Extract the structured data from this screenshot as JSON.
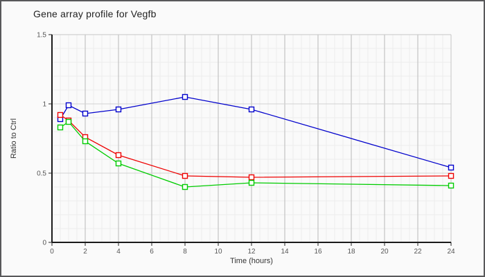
{
  "chart_data": {
    "type": "line",
    "title": "Gene array profile for Vegfb",
    "xlabel": "Time (hours)",
    "ylabel": "Ratio to Ctrl",
    "x": [
      0.5,
      1,
      2,
      4,
      8,
      12,
      24
    ],
    "series": [
      {
        "name": "blue",
        "color": "#0000cc",
        "values": [
          0.89,
          0.99,
          0.93,
          0.96,
          1.05,
          0.96,
          0.54
        ]
      },
      {
        "name": "red",
        "color": "#ee0000",
        "values": [
          0.92,
          0.88,
          0.76,
          0.63,
          0.48,
          0.47,
          0.48
        ]
      },
      {
        "name": "green",
        "color": "#00cc00",
        "values": [
          0.83,
          0.87,
          0.73,
          0.57,
          0.4,
          0.43,
          0.41
        ]
      }
    ],
    "xlim": [
      0,
      24
    ],
    "ylim": [
      0,
      1.5
    ],
    "x_major_ticks": [
      0,
      2,
      4,
      6,
      8,
      10,
      12,
      14,
      16,
      18,
      20,
      22,
      24
    ],
    "x_tick_labels": [
      "0",
      "2",
      "4",
      "6",
      "8",
      "10",
      "12",
      "14",
      "16",
      "18",
      "20",
      "22",
      "24"
    ],
    "x_minor_step": 0.5,
    "y_major_ticks": [
      0,
      0.5,
      1,
      1.5
    ],
    "y_tick_labels": [
      "0",
      "0.5",
      "1",
      "1.5"
    ],
    "y_minor_step": 0.1,
    "grid": true,
    "legend": false,
    "marker": "square"
  },
  "colors": {
    "background": "#fafafa",
    "border": "#58585a",
    "grid_minor": "#ececec",
    "grid_major_v": "#b8b8b8",
    "grid_major_h": "#d2d2d2",
    "frame": "#c6c6c6",
    "axis": "#1a1a1a",
    "tick": "#222222",
    "tick_text": "#555555",
    "title_text": "#222222"
  }
}
